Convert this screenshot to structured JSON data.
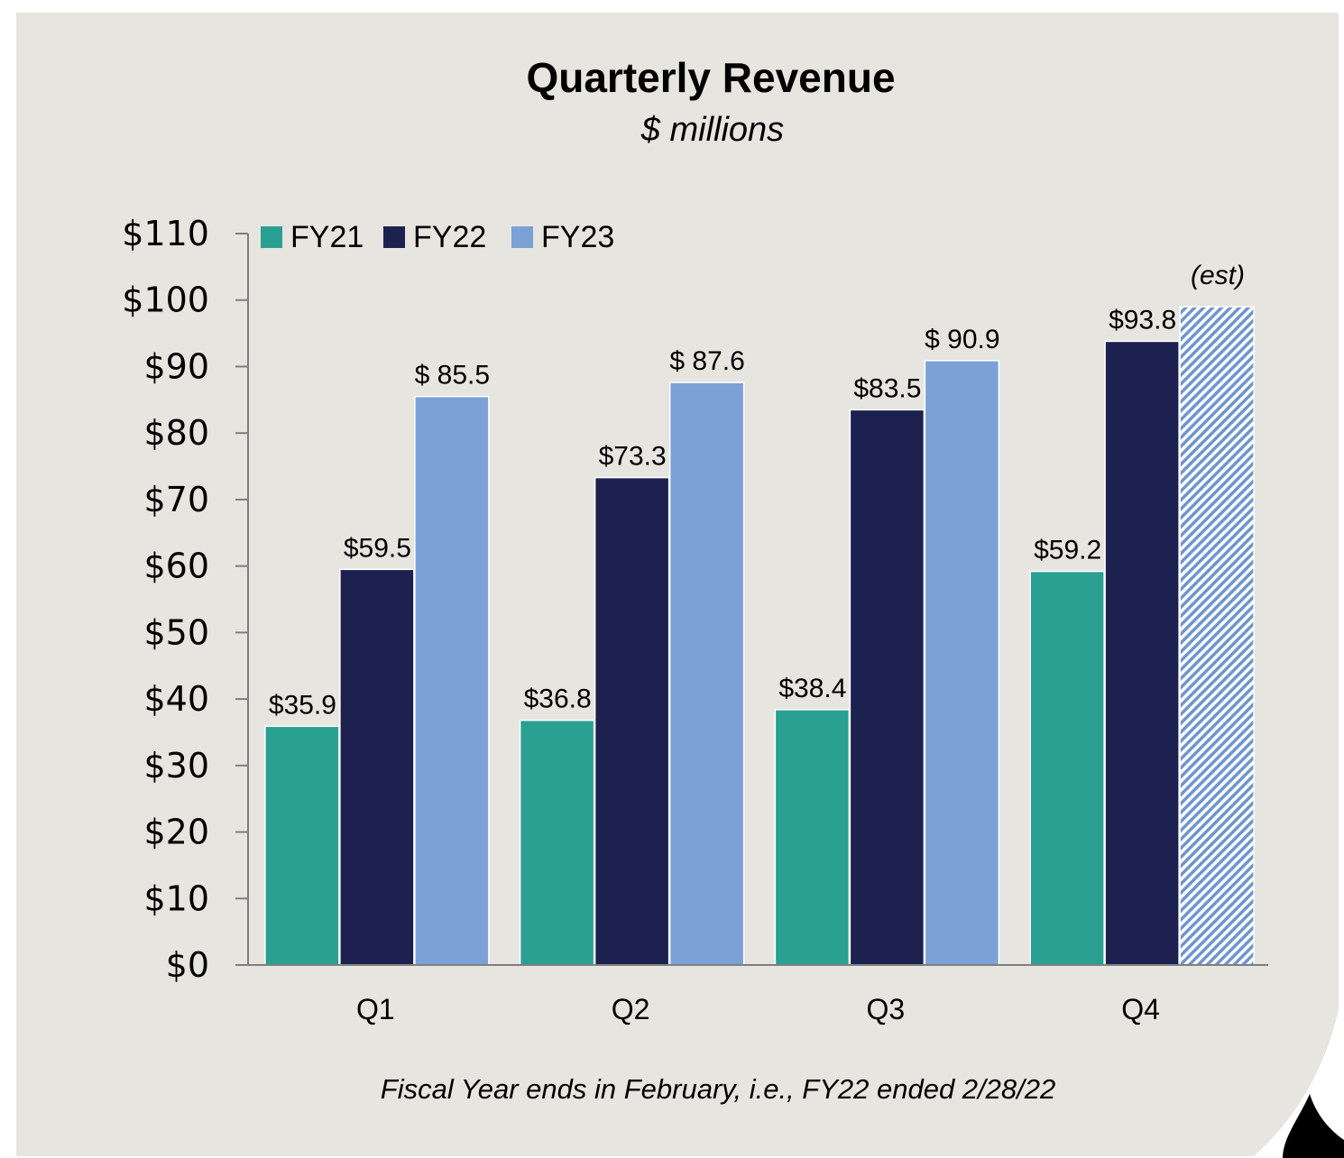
{
  "chart_data": {
    "type": "bar",
    "title": "Quarterly Revenue",
    "subtitle": "$ millions",
    "categories": [
      "Q1",
      "Q2",
      "Q3",
      "Q4"
    ],
    "ylim": [
      0,
      110
    ],
    "yticks": [
      0,
      10,
      20,
      30,
      40,
      50,
      60,
      70,
      80,
      90,
      100,
      110
    ],
    "ytick_labels": [
      "$0",
      "$10",
      "$20",
      "$30",
      "$40",
      "$50",
      "$60",
      "$70",
      "$80",
      "$90",
      "$100",
      "$110"
    ],
    "grid": false,
    "legend_position": "top-left",
    "series": [
      {
        "name": "FY21",
        "color": "#2aa093",
        "values": [
          35.9,
          36.8,
          38.4,
          59.2
        ],
        "labels": [
          "$35.9",
          "$36.8",
          "$38.4",
          "$59.2"
        ]
      },
      {
        "name": "FY22",
        "color": "#1d2150",
        "values": [
          59.5,
          73.3,
          83.5,
          93.8
        ],
        "labels": [
          "$59.5",
          "$73.3",
          "$83.5",
          "$93.8"
        ]
      },
      {
        "name": "FY23",
        "color": "#7ca1d6",
        "values": [
          85.5,
          87.6,
          90.9,
          99
        ],
        "labels": [
          "$ 85.5",
          "$ 87.6",
          "$ 90.9",
          ""
        ],
        "hatched_index": 3
      }
    ],
    "annotation": "(est)",
    "footnote": "Fiscal Year ends in February, i.e., FY22 ended 2/28/22"
  },
  "colors": {
    "panel_background": "#e6e5df",
    "axis": "#7f7f7f"
  }
}
